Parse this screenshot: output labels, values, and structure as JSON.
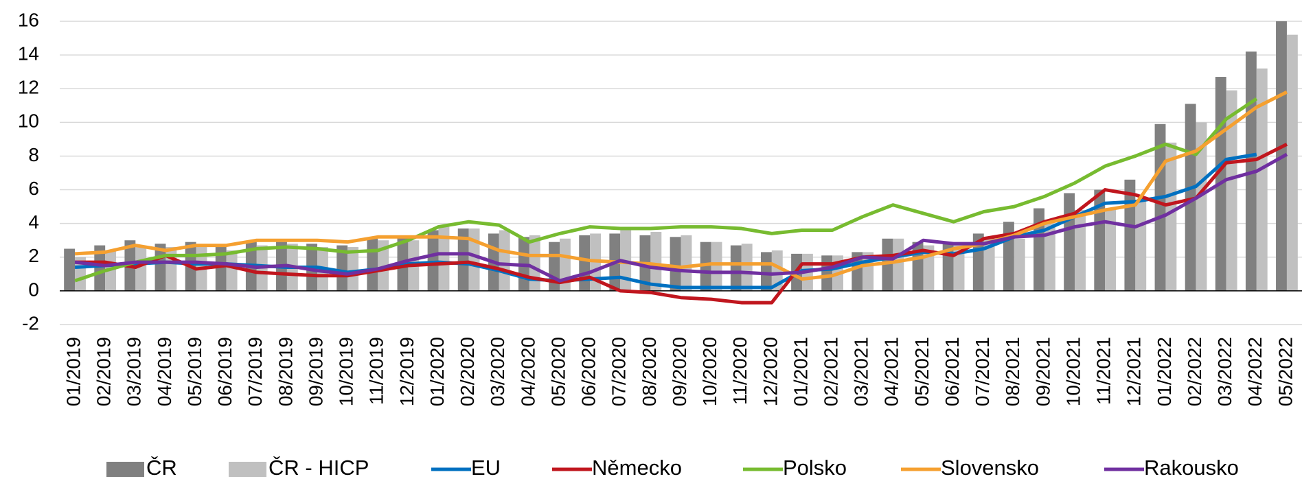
{
  "chart_data": {
    "type": "bar",
    "categories": [
      "01/2019",
      "02/2019",
      "03/2019",
      "04/2019",
      "05/2019",
      "06/2019",
      "07/2019",
      "08/2019",
      "09/2019",
      "10/2019",
      "11/2019",
      "12/2019",
      "01/2020",
      "02/2020",
      "03/2020",
      "04/2020",
      "05/2020",
      "06/2020",
      "07/2020",
      "08/2020",
      "09/2020",
      "10/2020",
      "11/2020",
      "12/2020",
      "01/2021",
      "02/2021",
      "03/2021",
      "04/2021",
      "05/2021",
      "06/2021",
      "07/2021",
      "08/2021",
      "09/2021",
      "10/2021",
      "11/2021",
      "12/2021",
      "01/2022",
      "02/2022",
      "03/2022",
      "04/2022",
      "05/2022"
    ],
    "series": [
      {
        "name": "ČR",
        "type": "bar",
        "color": "#808080",
        "values": [
          2.5,
          2.7,
          3.0,
          2.8,
          2.9,
          2.7,
          2.9,
          2.9,
          2.8,
          2.7,
          3.1,
          3.2,
          3.6,
          3.7,
          3.4,
          3.2,
          2.9,
          3.3,
          3.4,
          3.3,
          3.2,
          2.9,
          2.7,
          2.3,
          2.2,
          2.1,
          2.3,
          3.1,
          2.9,
          2.8,
          3.4,
          4.1,
          4.9,
          5.8,
          6.0,
          6.6,
          9.9,
          11.1,
          12.7,
          14.2,
          16.0
        ]
      },
      {
        "name": "ČR - HICP",
        "type": "bar",
        "color": "#c0c0c0",
        "values": [
          2.0,
          2.4,
          2.6,
          2.6,
          2.6,
          2.4,
          2.7,
          2.8,
          2.6,
          2.6,
          3.0,
          3.0,
          3.8,
          3.7,
          3.6,
          3.3,
          3.1,
          3.4,
          3.6,
          3.5,
          3.3,
          2.9,
          2.8,
          2.4,
          2.2,
          2.1,
          2.3,
          3.1,
          2.7,
          2.8,
          3.1,
          3.1,
          4.0,
          4.8,
          4.9,
          5.4,
          8.8,
          10.0,
          11.9,
          13.2,
          15.2
        ]
      },
      {
        "name": "EU",
        "type": "line",
        "color": "#0070c0",
        "values": [
          1.4,
          1.5,
          1.6,
          1.7,
          1.6,
          1.6,
          1.5,
          1.4,
          1.4,
          1.1,
          1.3,
          1.6,
          1.7,
          1.6,
          1.2,
          0.7,
          0.6,
          0.7,
          0.8,
          0.4,
          0.2,
          0.2,
          0.2,
          0.2,
          1.2,
          1.3,
          1.7,
          2.0,
          2.3,
          2.2,
          2.5,
          3.2,
          3.6,
          4.4,
          5.2,
          5.3,
          5.6,
          6.2,
          7.8,
          8.1,
          null
        ]
      },
      {
        "name": "Německo",
        "type": "line",
        "color": "#c0161e",
        "values": [
          1.7,
          1.7,
          1.4,
          2.1,
          1.3,
          1.5,
          1.1,
          1.0,
          0.9,
          0.9,
          1.2,
          1.5,
          1.6,
          1.7,
          1.3,
          0.8,
          0.5,
          0.8,
          0.0,
          -0.1,
          -0.4,
          -0.5,
          -0.7,
          -0.7,
          1.6,
          1.6,
          2.0,
          2.1,
          2.4,
          2.1,
          3.1,
          3.4,
          4.1,
          4.6,
          6.0,
          5.7,
          5.1,
          5.5,
          7.6,
          7.8,
          8.7
        ]
      },
      {
        "name": "Polsko",
        "type": "line",
        "color": "#77bb30",
        "values": [
          0.6,
          1.2,
          1.7,
          2.1,
          2.1,
          2.2,
          2.5,
          2.6,
          2.5,
          2.3,
          2.4,
          3.0,
          3.8,
          4.1,
          3.9,
          2.9,
          3.4,
          3.8,
          3.7,
          3.7,
          3.8,
          3.8,
          3.7,
          3.4,
          3.6,
          3.6,
          4.4,
          5.1,
          4.6,
          4.1,
          4.7,
          5.0,
          5.6,
          6.4,
          7.4,
          8.0,
          8.7,
          8.1,
          10.2,
          11.4,
          null
        ]
      },
      {
        "name": "Slovensko",
        "type": "line",
        "color": "#f5a030",
        "values": [
          2.2,
          2.3,
          2.7,
          2.4,
          2.7,
          2.7,
          3.0,
          3.0,
          3.0,
          2.9,
          3.2,
          3.2,
          3.2,
          3.1,
          2.4,
          2.1,
          2.1,
          1.8,
          1.7,
          1.6,
          1.4,
          1.6,
          1.6,
          1.6,
          0.7,
          0.9,
          1.5,
          1.7,
          2.0,
          2.5,
          2.8,
          3.3,
          4.0,
          4.4,
          4.8,
          5.1,
          7.7,
          8.3,
          9.6,
          10.9,
          11.8
        ]
      },
      {
        "name": "Rakousko",
        "type": "line",
        "color": "#7030a0",
        "values": [
          1.7,
          1.5,
          1.7,
          1.7,
          1.7,
          1.6,
          1.4,
          1.5,
          1.2,
          1.0,
          1.3,
          1.8,
          2.2,
          2.2,
          1.6,
          1.5,
          0.6,
          1.1,
          1.8,
          1.4,
          1.2,
          1.1,
          1.1,
          1.0,
          1.1,
          1.4,
          2.0,
          1.9,
          3.0,
          2.8,
          2.8,
          3.2,
          3.3,
          3.8,
          4.1,
          3.8,
          4.5,
          5.5,
          6.6,
          7.1,
          8.1
        ]
      }
    ],
    "ylim": [
      -2,
      16
    ],
    "yticks": [
      -2,
      0,
      2,
      4,
      6,
      8,
      10,
      12,
      14,
      16
    ],
    "grid": true,
    "legend": "bottom"
  }
}
